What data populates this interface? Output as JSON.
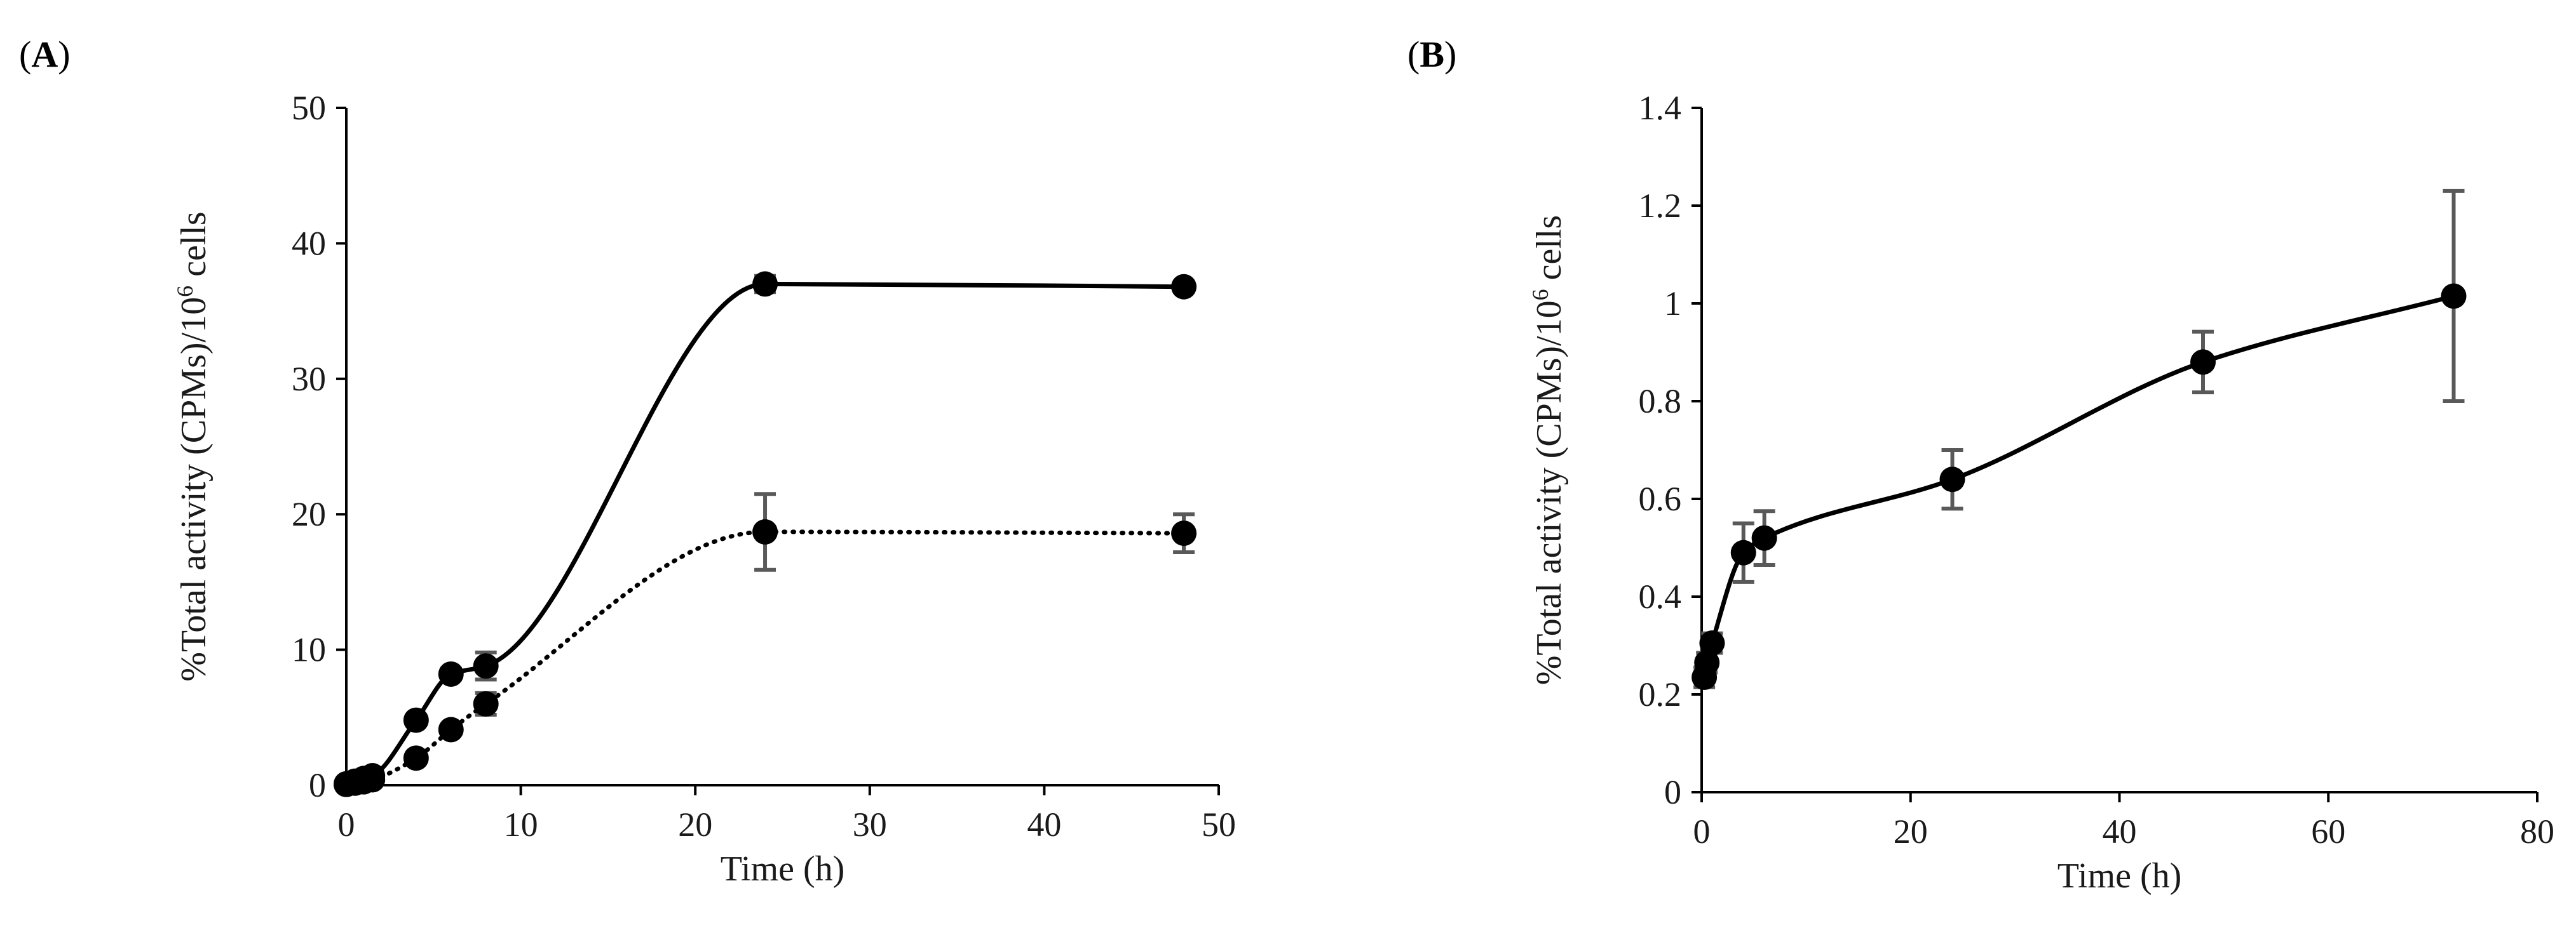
{
  "chart_data": [
    {
      "panel_label": "A",
      "type": "line",
      "title": "",
      "xlabel": "Time (h)",
      "ylabel_main": "%Total activity (CPMs)/10",
      "ylabel_sup": "6",
      "ylabel_tail": " cells",
      "xlim": [
        0,
        50
      ],
      "ylim": [
        0,
        50
      ],
      "xticks": [
        0,
        10,
        20,
        30,
        40,
        50
      ],
      "yticks": [
        0,
        10,
        20,
        30,
        40,
        50
      ],
      "grid": false,
      "series": [
        {
          "name": "solid",
          "style": "solid",
          "x": [
            0,
            0.5,
            1,
            1.5,
            4,
            6,
            8,
            24,
            48
          ],
          "y": [
            0.1,
            0.3,
            0.5,
            0.7,
            4.8,
            8.2,
            8.8,
            37.0,
            36.8
          ],
          "err": [
            0,
            0,
            0,
            0,
            0.3,
            0.4,
            1.0,
            0.6,
            0.3
          ]
        },
        {
          "name": "dotted",
          "style": "dotted",
          "x": [
            0,
            0.5,
            1,
            1.5,
            4,
            6,
            8,
            24,
            48
          ],
          "y": [
            0.05,
            0.15,
            0.25,
            0.4,
            2.0,
            4.1,
            6.0,
            18.7,
            18.6
          ],
          "err": [
            0,
            0,
            0,
            0,
            0.2,
            0.3,
            0.8,
            2.8,
            1.4
          ]
        }
      ]
    },
    {
      "panel_label": "B",
      "type": "line",
      "title": "",
      "xlabel": "Time (h)",
      "ylabel_main": "%Total activity (CPMs)/10",
      "ylabel_sup": "6",
      "ylabel_tail": " cells",
      "xlim": [
        0,
        80
      ],
      "ylim": [
        0,
        1.4
      ],
      "xticks": [
        0,
        20,
        40,
        60,
        80
      ],
      "yticks": [
        0,
        0.2,
        0.4,
        0.6,
        0.8,
        1,
        1.2,
        1.4
      ],
      "ytick_labels": [
        "0",
        "0.2",
        "0.4",
        "0.6",
        "0.8",
        "1",
        "1.2",
        "1.4"
      ],
      "grid": false,
      "series": [
        {
          "name": "solid",
          "style": "solid",
          "x": [
            0.25,
            0.5,
            1,
            4,
            6,
            24,
            48,
            72
          ],
          "y": [
            0.235,
            0.265,
            0.305,
            0.49,
            0.52,
            0.64,
            0.88,
            1.015
          ],
          "err": [
            0.02,
            0.02,
            0.02,
            0.06,
            0.055,
            0.06,
            0.062,
            0.215
          ]
        }
      ]
    }
  ]
}
